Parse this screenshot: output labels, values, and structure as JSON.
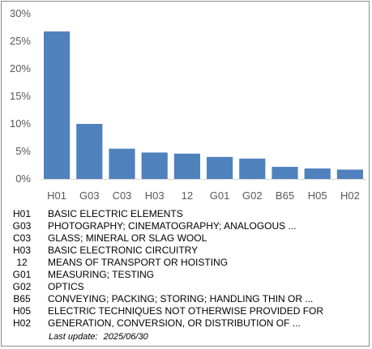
{
  "chart_data": {
    "type": "bar",
    "categories": [
      "H01",
      "G03",
      "C03",
      "H03",
      "12",
      "G01",
      "G02",
      "B65",
      "H05",
      "H02"
    ],
    "values": [
      26.8,
      10.0,
      5.5,
      4.8,
      4.6,
      4.0,
      3.7,
      2.2,
      1.9,
      1.7
    ],
    "y_ticks": [
      "0%",
      "5%",
      "10%",
      "15%",
      "20%",
      "25%",
      "30%"
    ],
    "ylim": [
      0,
      30
    ],
    "bar_color": "#4f81bd",
    "grid": false
  },
  "legend": [
    {
      "code": "H01",
      "description": "BASIC ELECTRIC ELEMENTS"
    },
    {
      "code": "G03",
      "description": "PHOTOGRAPHY; CINEMATOGRAPHY; ANALOGOUS ..."
    },
    {
      "code": "C03",
      "description": "GLASS; MINERAL OR SLAG WOOL"
    },
    {
      "code": "H03",
      "description": "BASIC ELECTRONIC CIRCUITRY"
    },
    {
      "code": "12",
      "description": "MEANS OF TRANSPORT OR HOISTING"
    },
    {
      "code": "G01",
      "description": "MEASURING; TESTING"
    },
    {
      "code": "G02",
      "description": "OPTICS"
    },
    {
      "code": "B65",
      "description": "CONVEYING; PACKING; STORING; HANDLING THIN OR ..."
    },
    {
      "code": "H05",
      "description": "ELECTRIC TECHNIQUES NOT OTHERWISE PROVIDED FOR"
    },
    {
      "code": "H02",
      "description": "GENERATION, CONVERSION, OR DISTRIBUTION OF ..."
    }
  ],
  "last_update": {
    "label": "Last update:",
    "date": "2025/06/30"
  }
}
